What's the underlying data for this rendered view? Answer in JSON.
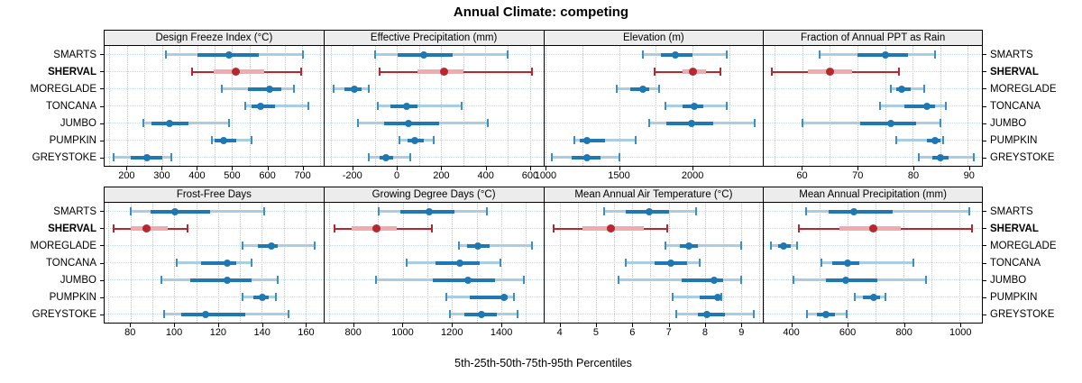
{
  "title": "Annual Climate: competing",
  "footer": "5th-25th-50th-75th-95th Percentiles",
  "colors": {
    "series": "#1f78b4",
    "series_light": "#a9cee3",
    "series_cap": "#3d8ec4",
    "series_guide": "#c5d9e8",
    "highlight": "#b7282e",
    "highlight_light": "#efabad",
    "highlight_guide": "#ecc7c8",
    "grid": "#c3c3c3",
    "strip_bg": "#ececec"
  },
  "chart_data": {
    "type": "percentile-dotplot",
    "percentile_labels": [
      "5th",
      "25th",
      "50th",
      "75th",
      "95th"
    ],
    "sites": [
      "SMARTS",
      "SHERVAL",
      "MOREGLADE",
      "TONCANA",
      "JUMBO",
      "PUMPKIN",
      "GREYSTOKE"
    ],
    "highlight_site": "SHERVAL",
    "legend_note": "values per site are [p5, p25, p50, p75, p95]",
    "panels": [
      {
        "title": "Design Freeze Index (°C)",
        "xlim": [
          135,
          760
        ],
        "grid_step": 50,
        "ticks": [
          200,
          300,
          400,
          500,
          600,
          700
        ],
        "values": [
          [
            310,
            400,
            490,
            575,
            700
          ],
          [
            385,
            445,
            510,
            590,
            695
          ],
          [
            470,
            545,
            605,
            640,
            675
          ],
          [
            535,
            555,
            580,
            620,
            715
          ],
          [
            245,
            270,
            320,
            375,
            490
          ],
          [
            440,
            450,
            475,
            510,
            555
          ],
          [
            160,
            210,
            255,
            300,
            325
          ]
        ]
      },
      {
        "title": "Effective Precipitation (mm)",
        "xlim": [
          -330,
          660
        ],
        "grid_step": 100,
        "ticks": [
          -200,
          0,
          200,
          400,
          600
        ],
        "values": [
          [
            -100,
            0,
            120,
            250,
            500
          ],
          [
            -80,
            90,
            210,
            300,
            610
          ],
          [
            -290,
            -240,
            -195,
            -160,
            -130
          ],
          [
            -90,
            -30,
            40,
            90,
            290
          ],
          [
            -180,
            -60,
            50,
            190,
            410
          ],
          [
            10,
            45,
            80,
            120,
            165
          ],
          [
            -130,
            -80,
            -50,
            -20,
            60
          ]
        ]
      },
      {
        "title": "Elevation (m)",
        "xlim": [
          985,
          2480
        ],
        "grid_step": 250,
        "ticks": [
          1000,
          1500,
          2000
        ],
        "values": [
          [
            1660,
            1780,
            1880,
            2000,
            2230
          ],
          [
            1740,
            1930,
            2000,
            2090,
            2190
          ],
          [
            1480,
            1570,
            1660,
            1700,
            1770
          ],
          [
            1810,
            1930,
            2010,
            2070,
            2230
          ],
          [
            1700,
            1820,
            1990,
            2140,
            2420
          ],
          [
            1190,
            1230,
            1280,
            1400,
            1610
          ],
          [
            1040,
            1170,
            1280,
            1370,
            1500
          ]
        ]
      },
      {
        "title": "Fraction of Annual PPT as Rain",
        "xlim": [
          53,
          92.5
        ],
        "grid_step": 5,
        "ticks": [
          60,
          70,
          80,
          90
        ],
        "values": [
          [
            63,
            70,
            75,
            79,
            84
          ],
          [
            54.5,
            61,
            65,
            69,
            77.5
          ],
          [
            76,
            77,
            78,
            79.5,
            82
          ],
          [
            74,
            78.5,
            82.5,
            84,
            86
          ],
          [
            60,
            70.5,
            76,
            80.5,
            85
          ],
          [
            77,
            82.5,
            84,
            85,
            85.5
          ],
          [
            81,
            83.5,
            85,
            86.5,
            91
          ]
        ]
      },
      {
        "title": "Frost-Free Days",
        "xlim": [
          68,
          168
        ],
        "grid_step": 10,
        "ticks": [
          80,
          100,
          120,
          140,
          160
        ],
        "values": [
          [
            80,
            89,
            100,
            116,
            141
          ],
          [
            72,
            80,
            87,
            97,
            106
          ],
          [
            131,
            138,
            144,
            147,
            164
          ],
          [
            101,
            112,
            124,
            128,
            135
          ],
          [
            94,
            107,
            124,
            135,
            147
          ],
          [
            131,
            136,
            140,
            143,
            146
          ],
          [
            95,
            103,
            114,
            132,
            152
          ]
        ]
      },
      {
        "title": "Growing Degree Days (°C)",
        "xlim": [
          680,
          1570
        ],
        "grid_step": 100,
        "ticks": [
          800,
          1000,
          1200,
          1400
        ],
        "values": [
          [
            900,
            990,
            1105,
            1210,
            1340
          ],
          [
            720,
            790,
            890,
            975,
            1115
          ],
          [
            1225,
            1260,
            1305,
            1350,
            1525
          ],
          [
            1015,
            1130,
            1230,
            1310,
            1395
          ],
          [
            890,
            1120,
            1265,
            1375,
            1490
          ],
          [
            1175,
            1270,
            1410,
            1425,
            1450
          ],
          [
            1190,
            1250,
            1320,
            1380,
            1465
          ]
        ]
      },
      {
        "title": "Mean Annual Air Temperature (°C)",
        "xlim": [
          3.55,
          9.6
        ],
        "grid_step": 0.5,
        "ticks": [
          4,
          5,
          6,
          7,
          8,
          9
        ],
        "values": [
          [
            5.2,
            5.8,
            6.45,
            7.0,
            7.75
          ],
          [
            3.8,
            4.6,
            5.4,
            6.3,
            6.95
          ],
          [
            6.9,
            7.3,
            7.55,
            7.8,
            9.0
          ],
          [
            5.8,
            6.6,
            7.05,
            7.5,
            7.85
          ],
          [
            5.6,
            7.35,
            8.25,
            8.5,
            9.0
          ],
          [
            7.1,
            7.85,
            8.35,
            8.4,
            8.45
          ],
          [
            7.2,
            7.8,
            8.05,
            8.55,
            9.35
          ]
        ]
      },
      {
        "title": "Mean Annual Precipitation (mm)",
        "xlim": [
          300,
          1080
        ],
        "grid_step": 100,
        "ticks": [
          400,
          600,
          800,
          1000
        ],
        "values": [
          [
            450,
            530,
            620,
            760,
            1035
          ],
          [
            425,
            570,
            690,
            790,
            1045
          ],
          [
            325,
            350,
            370,
            395,
            420
          ],
          [
            505,
            545,
            598,
            640,
            835
          ],
          [
            405,
            520,
            592,
            705,
            880
          ],
          [
            625,
            655,
            692,
            715,
            735
          ],
          [
            455,
            490,
            523,
            555,
            595
          ]
        ]
      }
    ]
  }
}
